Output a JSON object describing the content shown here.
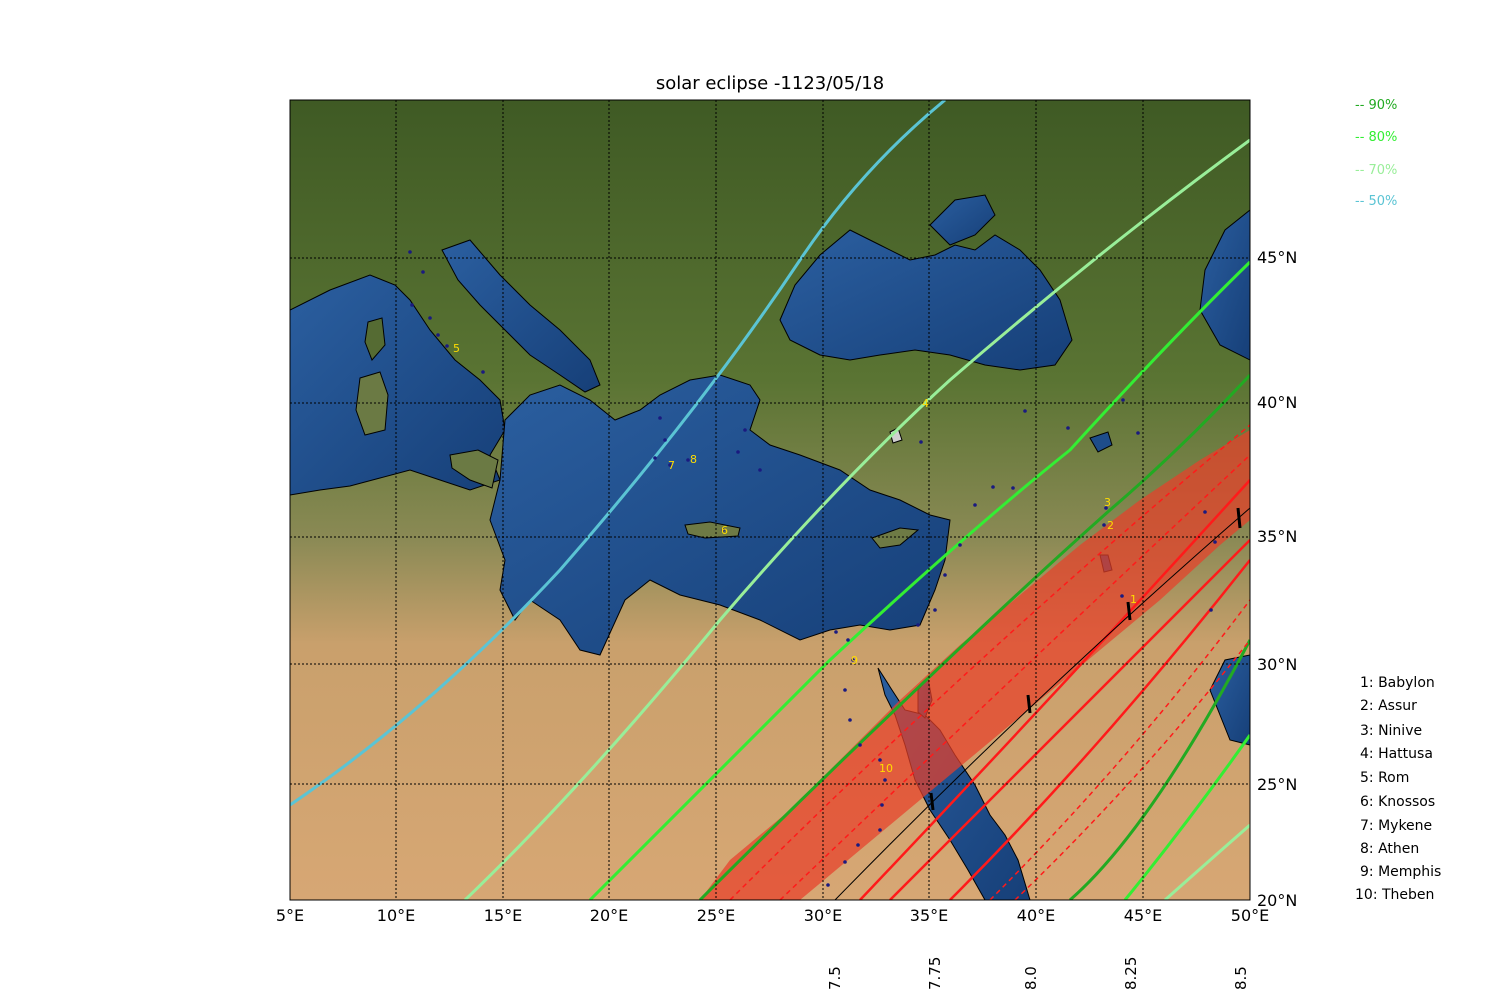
{
  "title": "solar eclipse -1123/05/18",
  "x_ticks": [
    "5°E",
    "10°E",
    "15°E",
    "20°E",
    "25°E",
    "30°E",
    "35°E",
    "40°E",
    "45°E",
    "50°E"
  ],
  "y_ticks": [
    "45°N",
    "40°N",
    "35°N",
    "30°N",
    "25°N",
    "20°N"
  ],
  "time_ticks": [
    "7.5",
    "7.75",
    "8.0",
    "8.25",
    "8.5"
  ],
  "magnitude_legend": [
    {
      "label": "-- 90%",
      "color": "#22aa22"
    },
    {
      "label": "-- 80%",
      "color": "#33ee33"
    },
    {
      "label": "-- 70%",
      "color": "#99ee99"
    },
    {
      "label": "-- 50%",
      "color": "#5bc4d4"
    }
  ],
  "sites": [
    {
      "num": "1",
      "name": "1: Babylon"
    },
    {
      "num": "2",
      "name": "2: Assur"
    },
    {
      "num": "3",
      "name": "3: Ninive"
    },
    {
      "num": "4",
      "name": "4: Hattusa"
    },
    {
      "num": "5",
      "name": "5: Rom"
    },
    {
      "num": "6",
      "name": "6: Knossos"
    },
    {
      "num": "7",
      "name": "7: Mykene"
    },
    {
      "num": "8",
      "name": "8: Athen"
    },
    {
      "num": "9",
      "name": "9: Memphis"
    },
    {
      "num": "10",
      "name": "10: Theben"
    }
  ],
  "colors": {
    "sea": "#1e4d8a",
    "land_green": "#4f6a2c",
    "desert": "#d3a26e",
    "totality_band": "#e8402a",
    "site_label": "#ffdd00",
    "central_line": "#000000"
  }
}
